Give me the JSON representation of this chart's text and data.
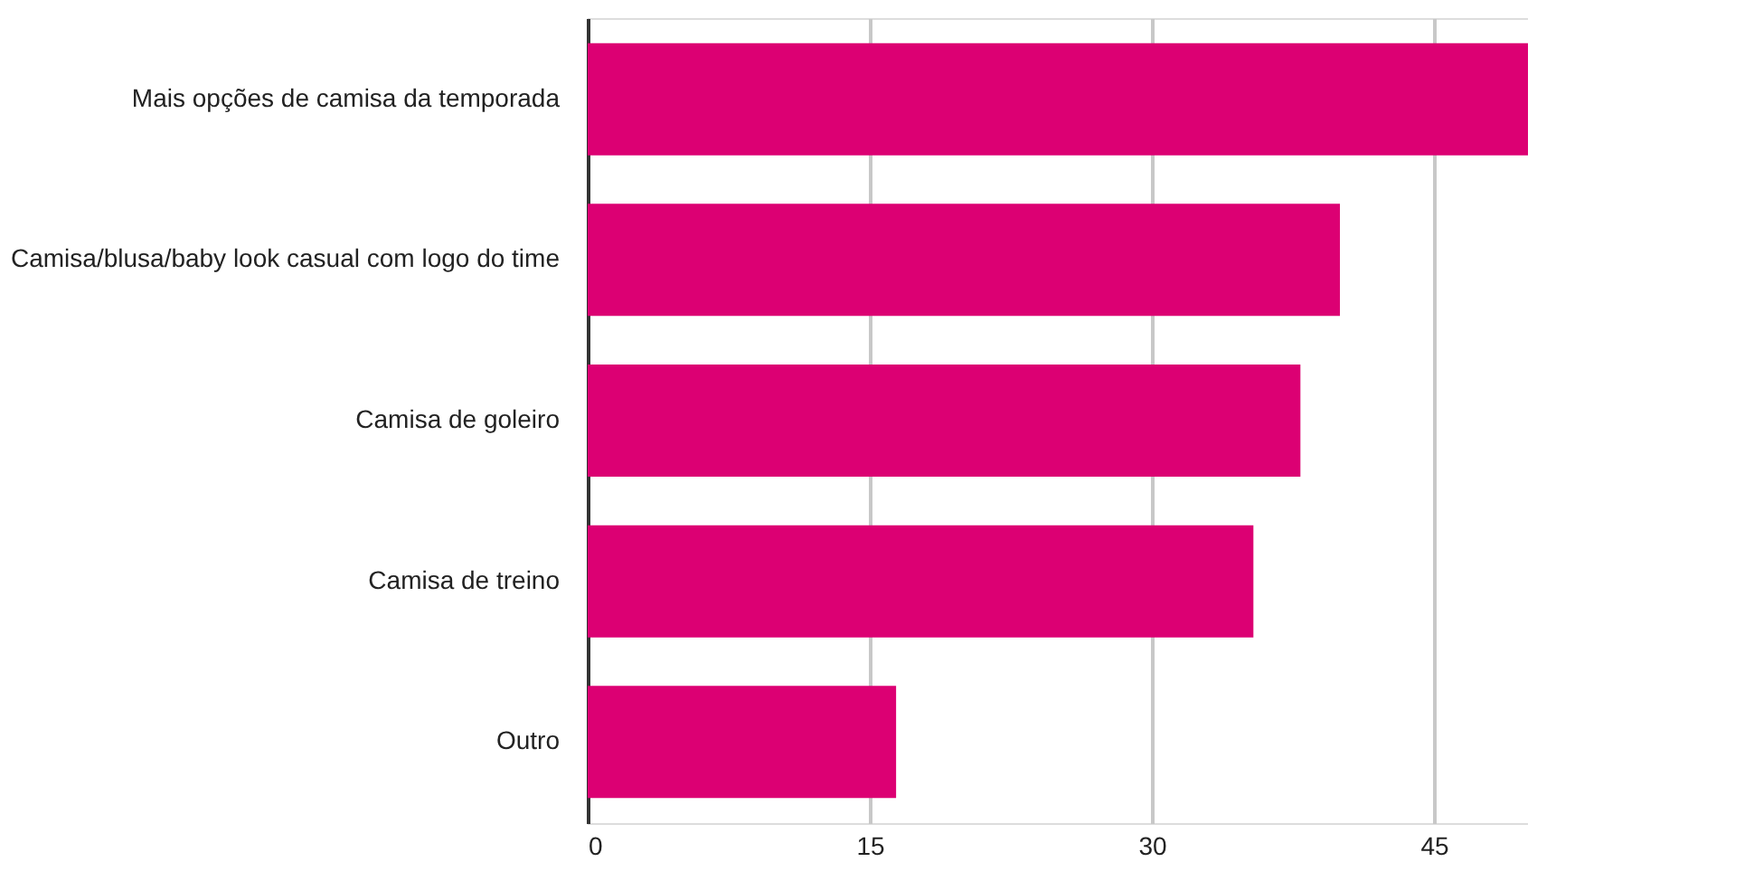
{
  "chart_data": {
    "type": "bar",
    "orientation": "horizontal",
    "categories": [
      "Mais opções de camisa da temporada",
      "Camisa/blusa/baby look casual com logo do time",
      "Camisa de goleiro",
      "Camisa de treino",
      "Outro"
    ],
    "values": [
      50,
      40,
      37.9,
      35.4,
      16.4
    ],
    "color": "#dc0073",
    "xlim": [
      0,
      50
    ],
    "xticks": [
      0,
      15,
      30,
      45
    ],
    "grid": "x"
  }
}
